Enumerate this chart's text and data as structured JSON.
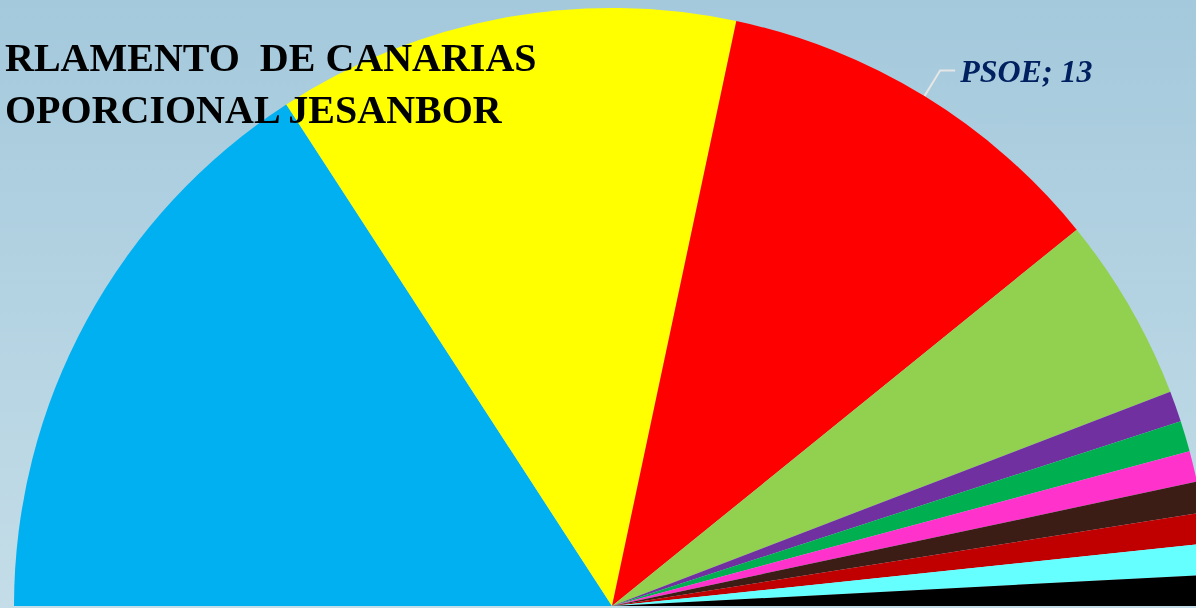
{
  "chart_data": {
    "type": "pie",
    "title": "RLAMENTO  DE CANARIAS",
    "subtitle": "OPORCIONAL JESANBOR",
    "categories": [
      null,
      null,
      "PSOE",
      null,
      null,
      null,
      null,
      null,
      null,
      null,
      null
    ],
    "values": [
      19,
      15,
      13,
      6,
      1,
      1,
      1,
      1,
      1,
      1,
      1
    ],
    "colors": [
      "#00b0f0",
      "#ffff00",
      "#ff0000",
      "#92d050",
      "#7030a0",
      "#00b050",
      "#ff33cc",
      "#3b1d15",
      "#c00000",
      "#66ffff",
      "#000000"
    ],
    "value_labels": [
      null,
      null,
      "13",
      null,
      null,
      null,
      null,
      null,
      null,
      null,
      null
    ]
  }
}
